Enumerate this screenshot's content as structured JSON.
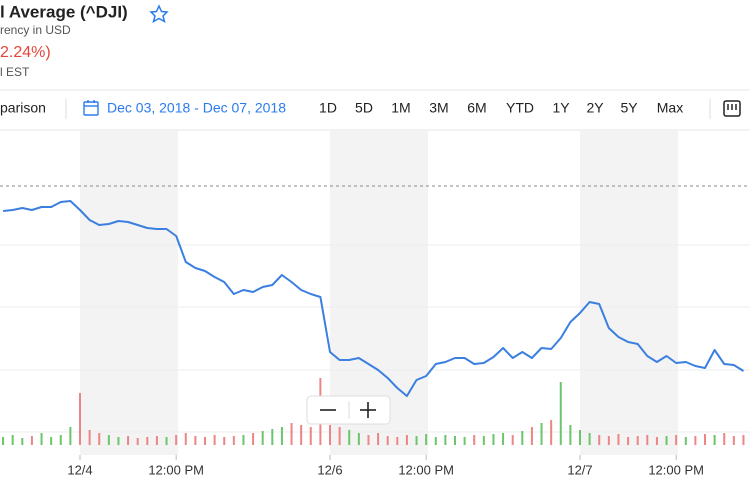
{
  "header": {
    "title": "l Average (^DJI)",
    "currency": "rency in USD",
    "change": "2.24%)",
    "time": "l EST"
  },
  "toolbar": {
    "comparison": "parison",
    "date_range": "Dec 03, 2018 - Dec 07, 2018",
    "ranges": [
      "1D",
      "5D",
      "1M",
      "3M",
      "6M",
      "YTD",
      "1Y",
      "2Y",
      "5Y",
      "Max"
    ]
  },
  "chart_data": {
    "type": "line",
    "x": [
      4.5,
      4.75,
      5,
      5.25,
      5.5,
      5.75,
      6,
      6.25,
      6.5,
      6.75,
      7,
      7.25,
      7.5,
      7.75,
      8,
      8.25,
      8.5,
      8.75,
      9,
      9.25,
      9.5,
      9.75,
      10,
      10.25,
      10.5,
      10.75,
      11,
      11.25,
      11.5,
      11.75,
      12,
      12.25,
      12.5,
      12.75,
      13,
      13.25,
      13.5,
      13.75,
      14,
      14.25,
      14.5,
      14.75,
      15,
      15.25,
      15.5,
      15.75,
      16,
      16.25,
      16.5,
      16.75,
      17,
      17.25,
      17.5,
      17.75,
      18,
      18.25,
      18.5,
      18.75,
      19,
      19.25,
      19.5,
      19.75,
      20,
      20.25,
      20.5,
      20.75,
      21,
      21.25,
      21.5,
      21.75,
      22,
      22.25,
      22.5,
      22.75,
      23,
      23.25,
      23.5,
      23.75
    ],
    "series": [
      {
        "color": "#3b7fe0",
        "values": [
          25490,
          25500,
          25520,
          25500,
          25530,
          25530,
          25580,
          25590,
          25500,
          25400,
          25350,
          25360,
          25390,
          25380,
          25350,
          25320,
          25310,
          25310,
          25240,
          24980,
          24920,
          24890,
          24830,
          24780,
          24660,
          24700,
          24680,
          24730,
          24750,
          24850,
          24780,
          24700,
          24660,
          24630,
          24080,
          24000,
          24000,
          24020,
          23960,
          23900,
          23820,
          23720,
          23640,
          23800,
          23840,
          23960,
          23980,
          24020,
          24020,
          23960,
          23970,
          24030,
          24120,
          24020,
          24080,
          24020,
          24120,
          24110,
          24220,
          24380,
          24470,
          24580,
          24560,
          24320,
          24230,
          24180,
          24160,
          24040,
          23980,
          24040,
          23970,
          23980,
          23940,
          23920,
          24100,
          23960,
          23950,
          23890
        ]
      }
    ],
    "volume": {
      "up_color": "#6cc46c",
      "down_color": "#ec8585",
      "ylim": [
        0,
        100
      ],
      "values": [
        8,
        10,
        7,
        9,
        12,
        8,
        10,
        18,
        52,
        15,
        12,
        10,
        8,
        9,
        7,
        8,
        9,
        8,
        10,
        12,
        9,
        8,
        10,
        8,
        9,
        10,
        12,
        14,
        16,
        18,
        22,
        20,
        18,
        67,
        20,
        18,
        15,
        12,
        10,
        12,
        9,
        8,
        10,
        9,
        11,
        8,
        10,
        9,
        8,
        10,
        9,
        11,
        12,
        10,
        14,
        18,
        22,
        25,
        63,
        20,
        15,
        12,
        10,
        9,
        11,
        8,
        9,
        10,
        8,
        9,
        10,
        8,
        9,
        11,
        10,
        12,
        9,
        10
      ]
    },
    "xlim": [
      4.42,
      23.92
    ],
    "ylim": [
      23000,
      26300
    ],
    "xticks": [
      {
        "value": 6.5,
        "label": "12/4"
      },
      {
        "value": 9,
        "label": "12:00 PM"
      },
      {
        "value": 13,
        "label": "12/6"
      },
      {
        "value": 15.5,
        "label": "12:00 PM"
      },
      {
        "value": 19.5,
        "label": "12/7"
      },
      {
        "value": 22,
        "label": "12:00 PM"
      }
    ]
  }
}
